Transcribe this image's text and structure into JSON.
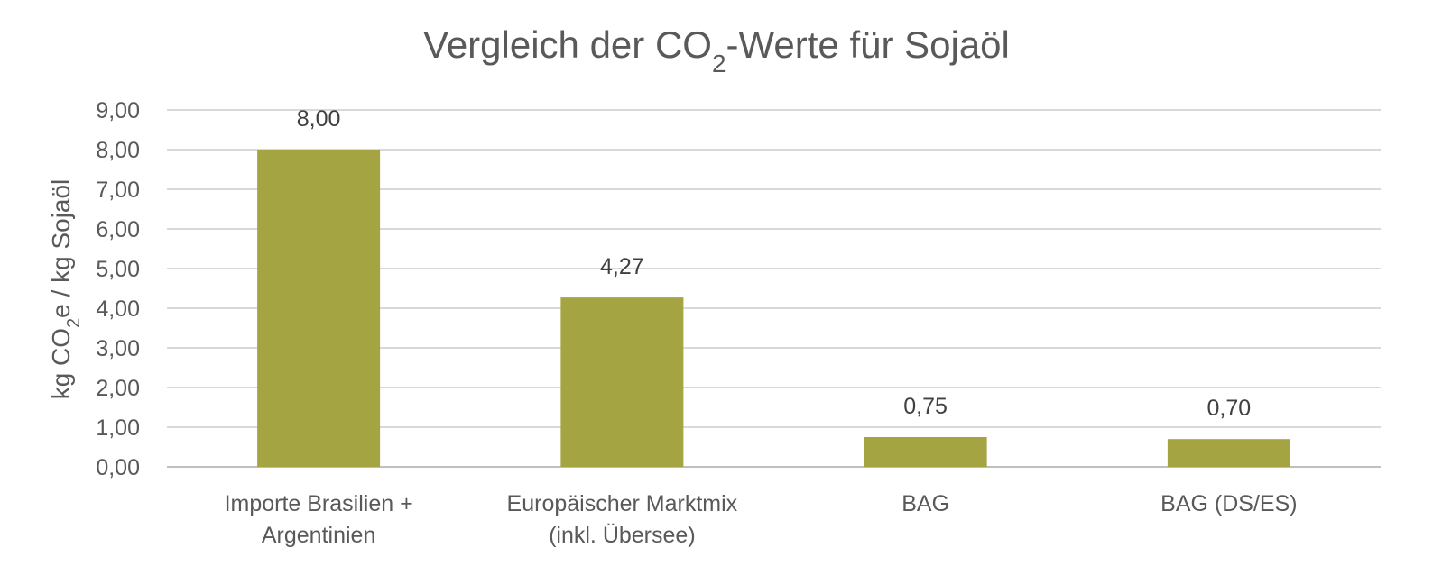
{
  "chart_data": {
    "type": "bar",
    "title_parts": {
      "main": "Vergleich der CO",
      "sub": "2",
      "rest": "-Werte für Sojaöl"
    },
    "ylabel_parts": {
      "main": "kg CO",
      "sub": "2",
      "rest": "e / kg Sojaöl"
    },
    "categories": [
      [
        "Importe Brasilien +",
        "Argentinien"
      ],
      [
        "Europäischer Marktmix",
        "(inkl. Übersee)"
      ],
      [
        "BAG"
      ],
      [
        "BAG (DS/ES)"
      ]
    ],
    "values": [
      8.0,
      4.27,
      0.75,
      0.7
    ],
    "data_labels": [
      "8,00",
      "4,27",
      "0,75",
      "0,70"
    ],
    "ylim": [
      0,
      9
    ],
    "yticks": [
      0,
      1,
      2,
      3,
      4,
      5,
      6,
      7,
      8,
      9
    ],
    "ytick_labels": [
      "0,00",
      "1,00",
      "2,00",
      "3,00",
      "4,00",
      "5,00",
      "6,00",
      "7,00",
      "8,00",
      "9,00"
    ],
    "grid": true,
    "legend": "none",
    "bar_color": "#a5a443"
  }
}
